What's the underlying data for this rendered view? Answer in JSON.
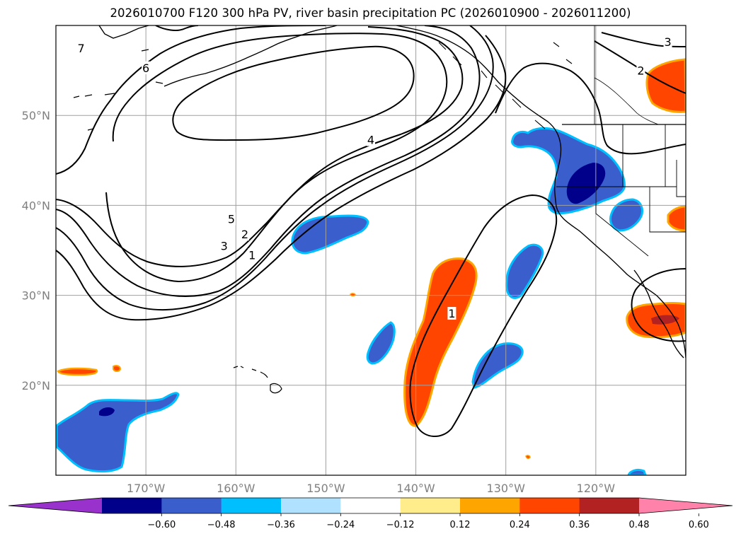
{
  "title": "2026010700 F120 300 hPa PV, river basin precipitation PC (2026010900 - 2026011200)",
  "map": {
    "lat_range": [
      10,
      60
    ],
    "lon_range": [
      -180,
      -110
    ],
    "lat_ticks": [
      {
        "value": 20,
        "label": "20°N"
      },
      {
        "value": 30,
        "label": "30°N"
      },
      {
        "value": 40,
        "label": "40°N"
      },
      {
        "value": 50,
        "label": "50°N"
      }
    ],
    "lon_ticks": [
      {
        "value": -170,
        "label": "170°W"
      },
      {
        "value": -160,
        "label": "160°W"
      },
      {
        "value": -150,
        "label": "150°W"
      },
      {
        "value": -140,
        "label": "140°W"
      },
      {
        "value": -130,
        "label": "130°W"
      },
      {
        "value": -120,
        "label": "120°W"
      }
    ],
    "grid": true,
    "pv_contour_labels": [
      {
        "text": "7",
        "lon": -177.2,
        "lat": 57.5
      },
      {
        "text": "6",
        "lon": -170.0,
        "lat": 55.3
      },
      {
        "text": "5",
        "lon": -160.5,
        "lat": 38.5
      },
      {
        "text": "4",
        "lon": -145.0,
        "lat": 47.3
      },
      {
        "text": "3",
        "lon": -161.3,
        "lat": 35.5
      },
      {
        "text": "2",
        "lon": -159.0,
        "lat": 36.8
      },
      {
        "text": "1",
        "lon": -158.2,
        "lat": 34.5
      },
      {
        "text": "1",
        "lon": -136.0,
        "lat": 28.0
      },
      {
        "text": "2",
        "lon": -115.0,
        "lat": 55.0
      },
      {
        "text": "3",
        "lon": -112.0,
        "lat": 58.2
      }
    ]
  },
  "colorbar": {
    "tick_labels": [
      "−0.60",
      "−0.48",
      "−0.36",
      "−0.24",
      "−0.12",
      "0.12",
      "0.24",
      "0.36",
      "0.48",
      "0.60"
    ],
    "colors": [
      "#9932cc",
      "#00008b",
      "#3a5fcd",
      "#00bfff",
      "#b0e2ff",
      "#ffffff",
      "#ffec8b",
      "#ffa500",
      "#ff4500",
      "#b22222",
      "#ff82ab"
    ],
    "extend": "both"
  }
}
